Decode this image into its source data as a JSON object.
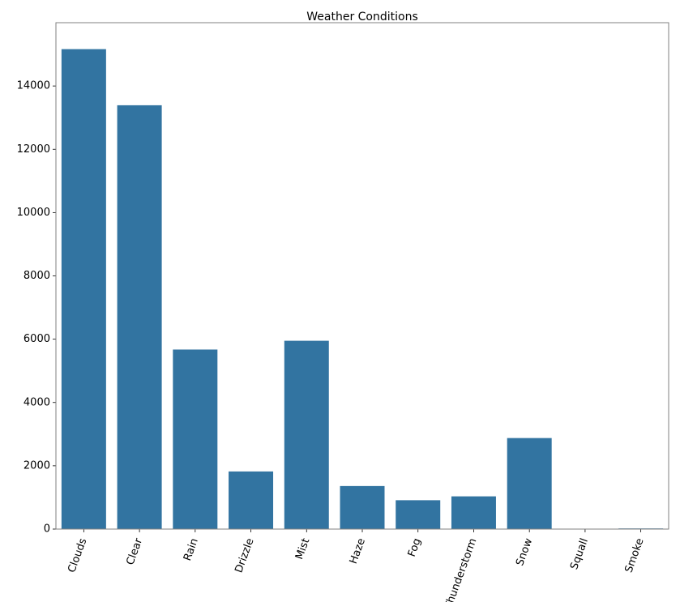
{
  "chart_data": {
    "type": "bar",
    "title": "Weather Conditions",
    "xlabel": "",
    "ylabel": "",
    "categories": [
      "Clouds",
      "Clear",
      "Rain",
      "Drizzle",
      "Mist",
      "Haze",
      "Fog",
      "Thunderstorm",
      "Snow",
      "Squall",
      "Smoke"
    ],
    "values": [
      15164,
      13391,
      5672,
      1821,
      5950,
      1360,
      912,
      1034,
      2876,
      4,
      20
    ],
    "ylim": [
      0,
      16000
    ],
    "yticks": [
      0,
      2000,
      4000,
      6000,
      8000,
      10000,
      12000,
      14000
    ],
    "ytick_labels": [
      "0",
      "2000",
      "4000",
      "6000",
      "8000",
      "10000",
      "12000",
      "14000"
    ],
    "bar_color": "#3274a1",
    "grid": false,
    "legend": "none"
  }
}
